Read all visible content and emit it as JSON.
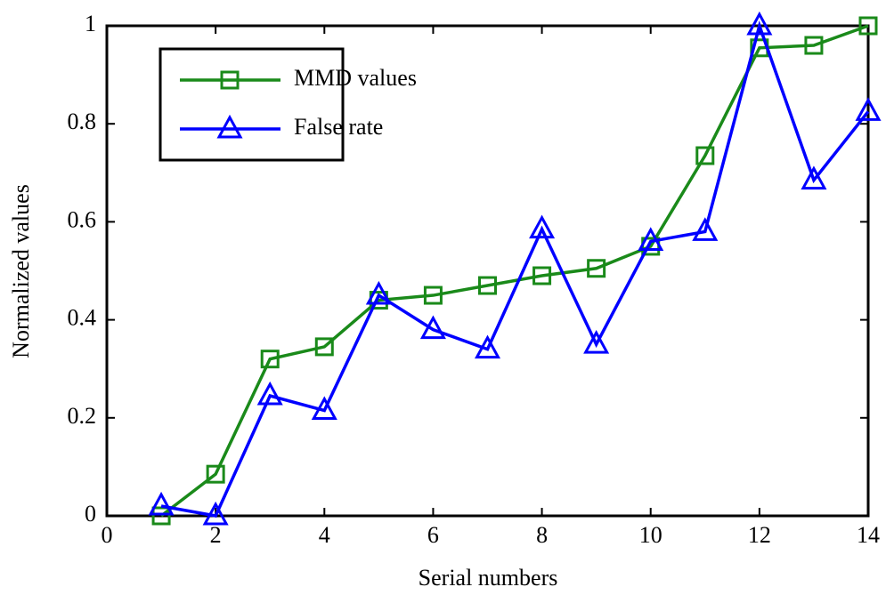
{
  "chart_data": {
    "type": "line",
    "x_label": "Serial numbers",
    "y_label": "Normalized values",
    "x": [
      1,
      2,
      3,
      4,
      5,
      6,
      7,
      8,
      9,
      10,
      11,
      12,
      13,
      14
    ],
    "series": [
      {
        "name": "MMD values",
        "color": "#1a8a1a",
        "marker": "square",
        "values": [
          0,
          0.085,
          0.32,
          0.345,
          0.44,
          0.45,
          0.47,
          0.49,
          0.505,
          0.55,
          0.735,
          0.955,
          0.96,
          1.0
        ]
      },
      {
        "name": "False rate",
        "color": "#0000ff",
        "marker": "triangle",
        "values": [
          0.02,
          0,
          0.245,
          0.215,
          0.45,
          0.38,
          0.34,
          0.585,
          0.35,
          0.56,
          0.58,
          1.0,
          0.685,
          0.825
        ]
      }
    ],
    "xlim": [
      0,
      14
    ],
    "xticks": [
      0,
      2,
      4,
      6,
      8,
      10,
      12,
      14
    ],
    "ylim": [
      0,
      1
    ],
    "yticks": [
      0,
      0.2,
      0.4,
      0.6,
      0.8,
      1
    ],
    "legend": "upper left",
    "grid": false
  }
}
